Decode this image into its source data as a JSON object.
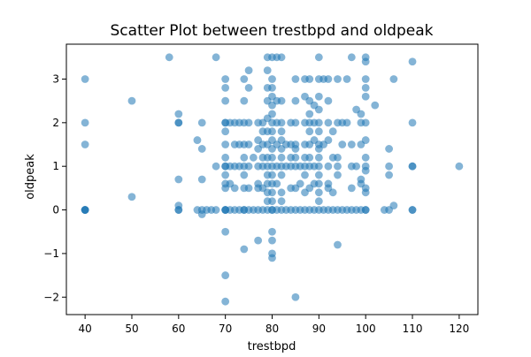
{
  "chart_data": {
    "type": "scatter",
    "title": "Scatter Plot between trestbpd and oldpeak",
    "xlabel": "trestbpd",
    "ylabel": "oldpeak",
    "xlim": [
      36,
      124
    ],
    "ylim": [
      -2.4,
      3.8
    ],
    "xticks": [
      40,
      50,
      60,
      70,
      80,
      90,
      100,
      110,
      120
    ],
    "yticks": [
      -2,
      -1,
      0,
      1,
      2,
      3
    ],
    "ytick_labels": [
      "−2",
      "−1",
      "0",
      "1",
      "2",
      "3"
    ],
    "grid": false,
    "legend": "none",
    "marker_color": "#1f77b4",
    "marker_opacity": 0.55,
    "points": [
      [
        40,
        3
      ],
      [
        40,
        2
      ],
      [
        40,
        1.5
      ],
      [
        40,
        0
      ],
      [
        40,
        0
      ],
      [
        40,
        0
      ],
      [
        40,
        0
      ],
      [
        50,
        2.5
      ],
      [
        50,
        0.3
      ],
      [
        58,
        3.5
      ],
      [
        60,
        2.2
      ],
      [
        60,
        2
      ],
      [
        60,
        2
      ],
      [
        60,
        0.7
      ],
      [
        60,
        0.1
      ],
      [
        60,
        0
      ],
      [
        60,
        0
      ],
      [
        64,
        1.6
      ],
      [
        64,
        0
      ],
      [
        65,
        2
      ],
      [
        65,
        1.4
      ],
      [
        65,
        0.7
      ],
      [
        65,
        0
      ],
      [
        65,
        -0.1
      ],
      [
        66,
        0
      ],
      [
        67,
        0
      ],
      [
        68,
        3.5
      ],
      [
        68,
        1
      ],
      [
        68,
        0
      ],
      [
        70,
        3
      ],
      [
        70,
        2.8
      ],
      [
        70,
        2.5
      ],
      [
        70,
        2
      ],
      [
        70,
        2
      ],
      [
        70,
        1.8
      ],
      [
        70,
        1.5
      ],
      [
        70,
        1.2
      ],
      [
        70,
        1
      ],
      [
        70,
        1
      ],
      [
        70,
        0.8
      ],
      [
        70,
        0.6
      ],
      [
        70,
        0.5
      ],
      [
        70,
        0
      ],
      [
        70,
        0
      ],
      [
        70,
        0
      ],
      [
        70,
        -0.5
      ],
      [
        70,
        -1.5
      ],
      [
        70,
        -2.1
      ],
      [
        71,
        2
      ],
      [
        71,
        1
      ],
      [
        71,
        0.6
      ],
      [
        71,
        0
      ],
      [
        72,
        2
      ],
      [
        72,
        1.5
      ],
      [
        72,
        1
      ],
      [
        72,
        0.5
      ],
      [
        72,
        0
      ],
      [
        73,
        2
      ],
      [
        73,
        1.5
      ],
      [
        73,
        1
      ],
      [
        73,
        0
      ],
      [
        74,
        3
      ],
      [
        74,
        2.5
      ],
      [
        74,
        2
      ],
      [
        74,
        1.5
      ],
      [
        74,
        1.2
      ],
      [
        74,
        1
      ],
      [
        74,
        0.8
      ],
      [
        74,
        0.5
      ],
      [
        74,
        0
      ],
      [
        74,
        0
      ],
      [
        74,
        -0.9
      ],
      [
        75,
        3.2
      ],
      [
        75,
        2.8
      ],
      [
        75,
        2
      ],
      [
        75,
        1.5
      ],
      [
        75,
        1
      ],
      [
        75,
        0.5
      ],
      [
        75,
        0
      ],
      [
        76,
        1.2
      ],
      [
        76,
        0
      ],
      [
        77,
        2
      ],
      [
        77,
        1.6
      ],
      [
        77,
        1.4
      ],
      [
        77,
        1
      ],
      [
        77,
        0.6
      ],
      [
        77,
        0.5
      ],
      [
        77,
        0
      ],
      [
        77,
        -0.7
      ],
      [
        78,
        2
      ],
      [
        78,
        1.8
      ],
      [
        78,
        1.5
      ],
      [
        78,
        1.2
      ],
      [
        78,
        1
      ],
      [
        78,
        0.5
      ],
      [
        78,
        0
      ],
      [
        79,
        3.5
      ],
      [
        79,
        3.2
      ],
      [
        79,
        2.8
      ],
      [
        79,
        2.5
      ],
      [
        79,
        2.1
      ],
      [
        79,
        1.8
      ],
      [
        79,
        1.5
      ],
      [
        79,
        1.2
      ],
      [
        79,
        1
      ],
      [
        79,
        0.8
      ],
      [
        79,
        0.6
      ],
      [
        79,
        0.4
      ],
      [
        79,
        0.2
      ],
      [
        79,
        0
      ],
      [
        80,
        3.5
      ],
      [
        80,
        3
      ],
      [
        80,
        2.8
      ],
      [
        80,
        2.6
      ],
      [
        80,
        2.4
      ],
      [
        80,
        2.2
      ],
      [
        80,
        2
      ],
      [
        80,
        1.8
      ],
      [
        80,
        1.6
      ],
      [
        80,
        1.4
      ],
      [
        80,
        1.2
      ],
      [
        80,
        1
      ],
      [
        80,
        0.8
      ],
      [
        80,
        0.6
      ],
      [
        80,
        0.4
      ],
      [
        80,
        0.2
      ],
      [
        80,
        0
      ],
      [
        80,
        0
      ],
      [
        80,
        -0.5
      ],
      [
        80,
        -0.7
      ],
      [
        80,
        -1
      ],
      [
        80,
        -1.1
      ],
      [
        81,
        3.5
      ],
      [
        81,
        2.5
      ],
      [
        81,
        2
      ],
      [
        81,
        1.5
      ],
      [
        81,
        1
      ],
      [
        81,
        0.6
      ],
      [
        81,
        0
      ],
      [
        82,
        3.5
      ],
      [
        82,
        2.5
      ],
      [
        82,
        2
      ],
      [
        82,
        1.8
      ],
      [
        82,
        1.6
      ],
      [
        82,
        1.4
      ],
      [
        82,
        1.2
      ],
      [
        82,
        1
      ],
      [
        82,
        0.8
      ],
      [
        82,
        0.4
      ],
      [
        82,
        0.2
      ],
      [
        82,
        0
      ],
      [
        83,
        1.5
      ],
      [
        83,
        1
      ],
      [
        83,
        0
      ],
      [
        84,
        2
      ],
      [
        84,
        1.5
      ],
      [
        84,
        1.2
      ],
      [
        84,
        1
      ],
      [
        84,
        0.5
      ],
      [
        84,
        0
      ],
      [
        85,
        3
      ],
      [
        85,
        2.5
      ],
      [
        85,
        2
      ],
      [
        85,
        1.5
      ],
      [
        85,
        1.4
      ],
      [
        85,
        1.2
      ],
      [
        85,
        1
      ],
      [
        85,
        0.5
      ],
      [
        85,
        0
      ],
      [
        85,
        -2
      ],
      [
        86,
        1
      ],
      [
        86,
        0.6
      ],
      [
        86,
        0
      ],
      [
        87,
        3
      ],
      [
        87,
        2.6
      ],
      [
        87,
        2
      ],
      [
        87,
        1.5
      ],
      [
        87,
        1.2
      ],
      [
        87,
        1
      ],
      [
        87,
        0.8
      ],
      [
        87,
        0.4
      ],
      [
        87,
        0
      ],
      [
        88,
        3
      ],
      [
        88,
        2.5
      ],
      [
        88,
        2.2
      ],
      [
        88,
        2
      ],
      [
        88,
        1.8
      ],
      [
        88,
        1.5
      ],
      [
        88,
        1.2
      ],
      [
        88,
        1
      ],
      [
        88,
        0.5
      ],
      [
        88,
        0
      ],
      [
        89,
        2.4
      ],
      [
        89,
        2
      ],
      [
        89,
        1.6
      ],
      [
        89,
        1
      ],
      [
        89,
        0.6
      ],
      [
        89,
        0
      ],
      [
        90,
        3.5
      ],
      [
        90,
        3
      ],
      [
        90,
        2.6
      ],
      [
        90,
        2.3
      ],
      [
        90,
        2
      ],
      [
        90,
        1.8
      ],
      [
        90,
        1.5
      ],
      [
        90,
        1.4
      ],
      [
        90,
        1.2
      ],
      [
        90,
        1
      ],
      [
        90,
        0.8
      ],
      [
        90,
        0.6
      ],
      [
        90,
        0.4
      ],
      [
        90,
        0.2
      ],
      [
        90,
        0
      ],
      [
        91,
        3
      ],
      [
        91,
        1.5
      ],
      [
        91,
        0
      ],
      [
        92,
        3
      ],
      [
        92,
        2.5
      ],
      [
        92,
        2
      ],
      [
        92,
        1.6
      ],
      [
        92,
        1
      ],
      [
        92,
        0.6
      ],
      [
        92,
        0.5
      ],
      [
        92,
        0
      ],
      [
        93,
        1.8
      ],
      [
        93,
        1.2
      ],
      [
        93,
        0.4
      ],
      [
        93,
        0
      ],
      [
        94,
        3
      ],
      [
        94,
        2
      ],
      [
        94,
        1.2
      ],
      [
        94,
        1
      ],
      [
        94,
        0.8
      ],
      [
        94,
        0
      ],
      [
        94,
        -0.8
      ],
      [
        95,
        2
      ],
      [
        95,
        1.5
      ],
      [
        95,
        0
      ],
      [
        96,
        3
      ],
      [
        96,
        2
      ],
      [
        96,
        0
      ],
      [
        97,
        3.5
      ],
      [
        97,
        1.5
      ],
      [
        97,
        1
      ],
      [
        97,
        0.5
      ],
      [
        97,
        0
      ],
      [
        98,
        2.3
      ],
      [
        98,
        1
      ],
      [
        98,
        0
      ],
      [
        99,
        2.2
      ],
      [
        99,
        2
      ],
      [
        99,
        1.5
      ],
      [
        99,
        0.7
      ],
      [
        99,
        0.6
      ],
      [
        99,
        0
      ],
      [
        100,
        3.5
      ],
      [
        100,
        3.4
      ],
      [
        100,
        3
      ],
      [
        100,
        2.8
      ],
      [
        100,
        2.6
      ],
      [
        100,
        2
      ],
      [
        100,
        1.6
      ],
      [
        100,
        1.2
      ],
      [
        100,
        1
      ],
      [
        100,
        0.9
      ],
      [
        100,
        0.5
      ],
      [
        100,
        0.4
      ],
      [
        100,
        0
      ],
      [
        100,
        0
      ],
      [
        102,
        2.4
      ],
      [
        104,
        0
      ],
      [
        105,
        1.4
      ],
      [
        105,
        1
      ],
      [
        105,
        0.8
      ],
      [
        105,
        0
      ],
      [
        106,
        3
      ],
      [
        106,
        0.1
      ],
      [
        110,
        3.4
      ],
      [
        110,
        2
      ],
      [
        110,
        1
      ],
      [
        110,
        1
      ],
      [
        110,
        0
      ],
      [
        110,
        0
      ],
      [
        120,
        1
      ]
    ]
  }
}
